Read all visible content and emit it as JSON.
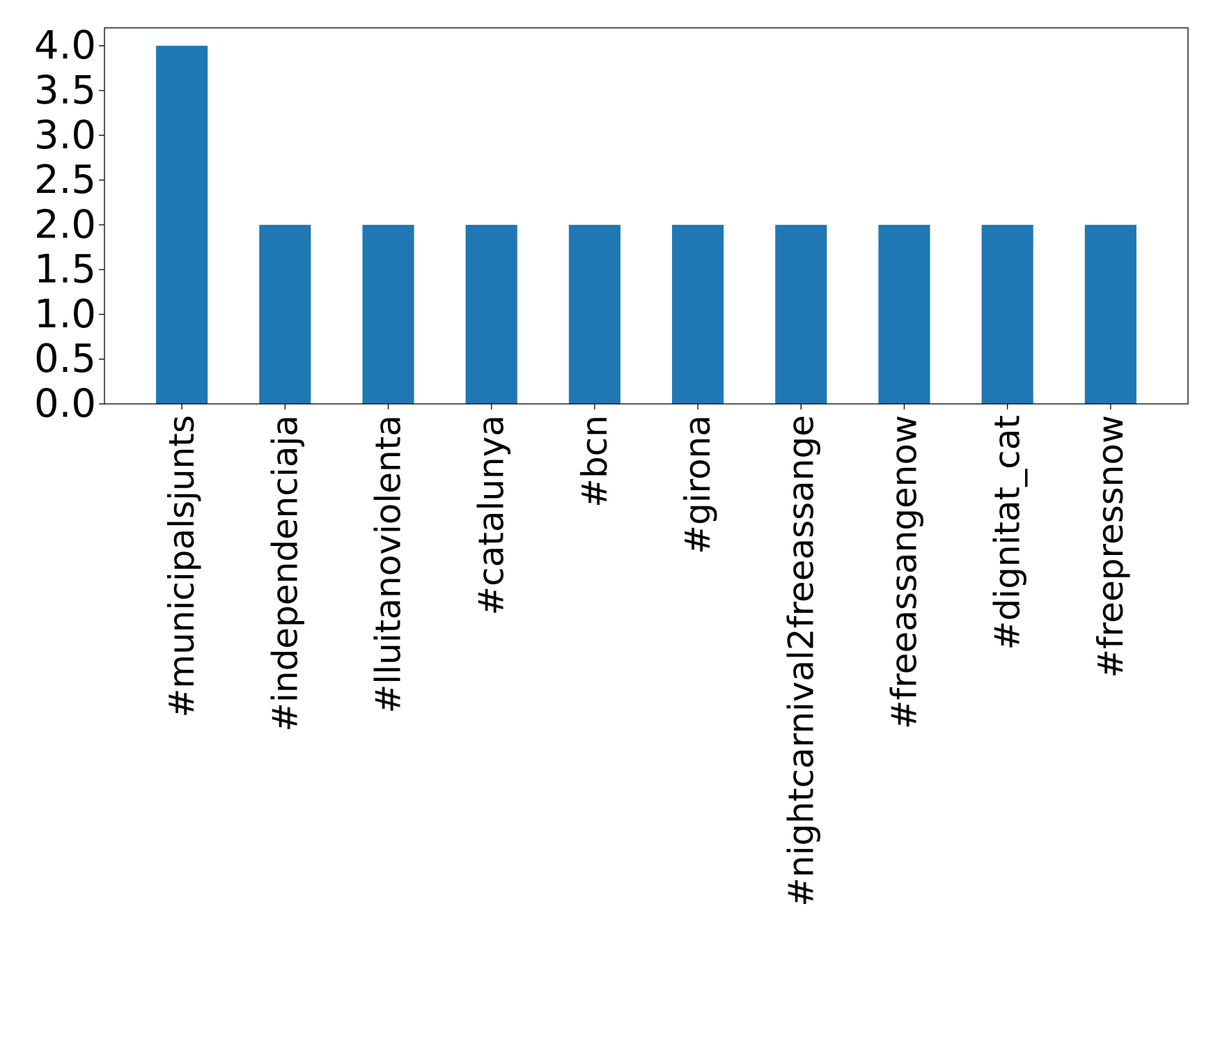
{
  "chart_data": {
    "type": "bar",
    "categories": [
      "#municipalsjunts",
      "#independenciaja",
      "#lluitanoviolenta",
      "#catalunya",
      "#bcn",
      "#girona",
      "#nightcarnival2freeassange",
      "#freeassangenow",
      "#dignitat_cat",
      "#freepressnow"
    ],
    "values": [
      4,
      2,
      2,
      2,
      2,
      2,
      2,
      2,
      2,
      2
    ],
    "yticks": [
      "0.0",
      "0.5",
      "1.0",
      "1.5",
      "2.0",
      "2.5",
      "3.0",
      "3.5",
      "4.0"
    ],
    "ylim": [
      0,
      4.2
    ],
    "bar_color": "#1f77b4",
    "grid": false,
    "legend": false
  }
}
